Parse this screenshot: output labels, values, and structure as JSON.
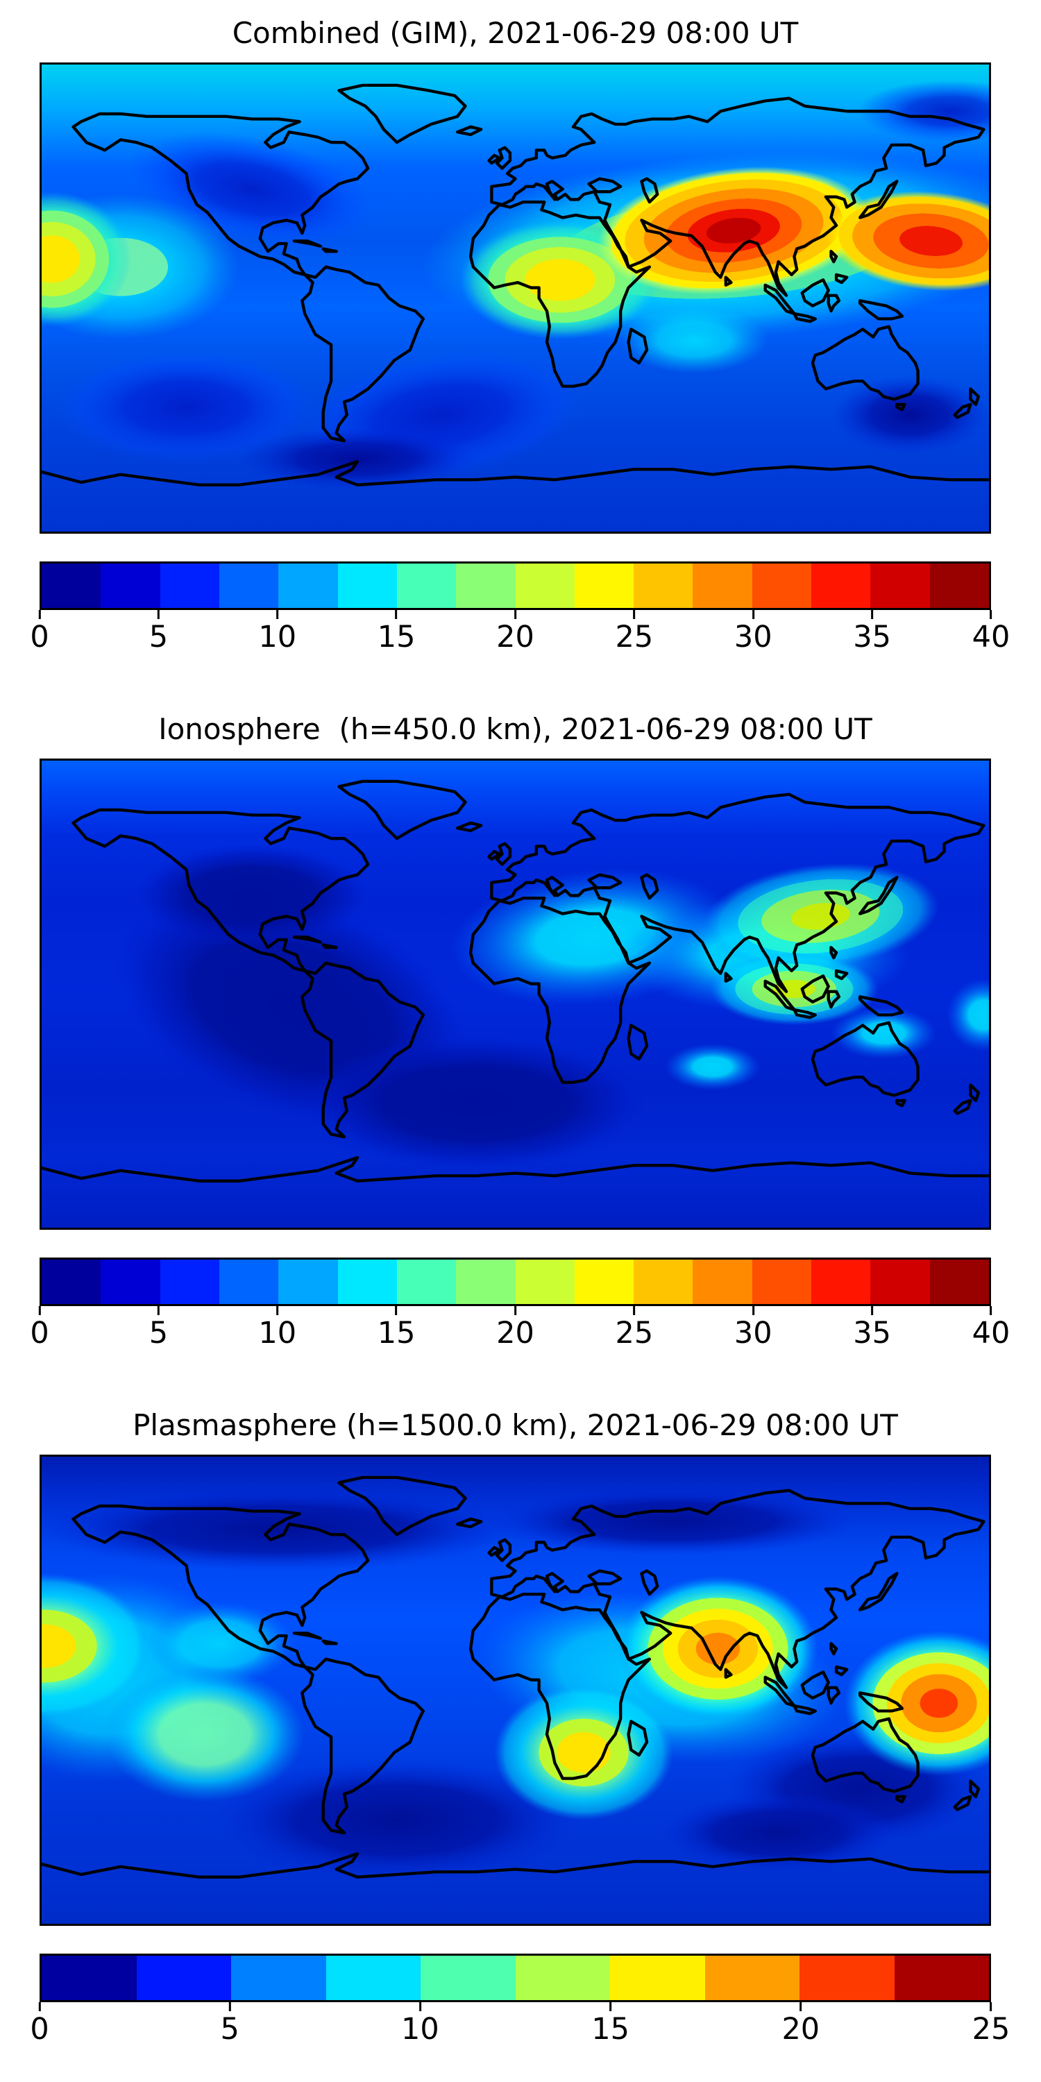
{
  "figure": {
    "background": "#ffffff",
    "text_color": "#000000",
    "colormap": "jet"
  },
  "chart_data": [
    {
      "type": "heatmap",
      "subtype": "filled-contour-world-map",
      "projection": "equirectangular",
      "title": "Combined (GIM), 2021-06-29 08:00 UT",
      "lon_range": [
        -180,
        180
      ],
      "lat_range": [
        -90,
        90
      ],
      "grid": false,
      "colorbar": {
        "min": 0,
        "max": 40,
        "segments": 16,
        "orientation": "horizontal",
        "ticks": [
          "0",
          "5",
          "10",
          "15",
          "20",
          "25",
          "30",
          "35",
          "40"
        ],
        "colors": [
          "#00009c",
          "#0000d4",
          "#0021ff",
          "#0064ff",
          "#00a6ff",
          "#00e8ff",
          "#47ffb7",
          "#8aff75",
          "#ccff33",
          "#fff700",
          "#ffc400",
          "#ff8a00",
          "#ff4f00",
          "#ff1500",
          "#d10000",
          "#990000"
        ]
      },
      "features": [
        {
          "name": "north-america-low",
          "lon": -100,
          "lat": 42,
          "value": 6,
          "rx": 48,
          "ry": 20,
          "rot": 12,
          "grad": "gDark"
        },
        {
          "name": "south-atlantic-low",
          "lon": -28,
          "lat": -45,
          "value": 5,
          "rx": 55,
          "ry": 24,
          "rot": -8,
          "grad": "gDark"
        },
        {
          "name": "south-pacific-low",
          "lon": -125,
          "lat": -42,
          "value": 5,
          "rx": 50,
          "ry": 22,
          "rot": 0,
          "grad": "gDark"
        },
        {
          "name": "southern-ocean-min-1",
          "lon": -60,
          "lat": -62,
          "value": 3,
          "rx": 45,
          "ry": 12,
          "rot": 0,
          "grad": "gNavy"
        },
        {
          "name": "southern-ocean-min-2",
          "lon": 150,
          "lat": -45,
          "value": 4,
          "rx": 30,
          "ry": 15,
          "rot": 0,
          "grad": "gNavy"
        },
        {
          "name": "arctic-east-low",
          "lon": 165,
          "lat": 72,
          "value": 8,
          "rx": 35,
          "ry": 12,
          "rot": 0,
          "grad": "gDark"
        },
        {
          "name": "east-pacific-green",
          "lon": -150,
          "lat": 12,
          "value": 18,
          "rx": 45,
          "ry": 28,
          "rot": 0,
          "grad": "gGreenCyan"
        },
        {
          "name": "south-indian-cyan",
          "lon": 68,
          "lat": -16,
          "value": 13,
          "rx": 28,
          "ry": 13,
          "rot": 0,
          "grad": "gCyan"
        },
        {
          "name": "equatorial-band",
          "lon": 82,
          "lat": 20,
          "value": 25,
          "rx": 118,
          "ry": 36,
          "rot": -4,
          "grad": "gBandGreen"
        },
        {
          "name": "africa-yellow",
          "lon": 17,
          "lat": 7,
          "value": 26,
          "rx": 38,
          "ry": 23,
          "rot": 0,
          "grad": "gYellow"
        },
        {
          "name": "dateline-yellow",
          "lon": -176,
          "lat": 15,
          "value": 24,
          "rx": 30,
          "ry": 26,
          "rot": 0,
          "grad": "gYellow"
        },
        {
          "name": "india-hotspot",
          "lon": 83,
          "lat": 26,
          "value": 38,
          "rx": 52,
          "ry": 24,
          "rot": -7,
          "grad": "gHot"
        },
        {
          "name": "west-pacific-hotspot",
          "lon": 158,
          "lat": 22,
          "value": 35,
          "rx": 40,
          "ry": 19,
          "rot": 5,
          "grad": "gHot2"
        }
      ]
    },
    {
      "type": "heatmap",
      "subtype": "filled-contour-world-map",
      "projection": "equirectangular",
      "title": "Ionosphere  (h=450.0 km), 2021-06-29 08:00 UT",
      "lon_range": [
        -180,
        180
      ],
      "lat_range": [
        -90,
        90
      ],
      "grid": false,
      "colorbar": {
        "min": 0,
        "max": 40,
        "segments": 16,
        "orientation": "horizontal",
        "ticks": [
          "0",
          "5",
          "10",
          "15",
          "20",
          "25",
          "30",
          "35",
          "40"
        ],
        "colors": [
          "#00009c",
          "#0000d4",
          "#0021ff",
          "#0064ff",
          "#00a6ff",
          "#00e8ff",
          "#47ffb7",
          "#8aff75",
          "#ccff33",
          "#fff700",
          "#ffc400",
          "#ff8a00",
          "#ff4f00",
          "#ff1500",
          "#d10000",
          "#990000"
        ]
      },
      "features": [
        {
          "name": "americas-min",
          "lon": -85,
          "lat": -5,
          "value": 4,
          "rx": 70,
          "ry": 42,
          "rot": 20,
          "grad": "gNavy2"
        },
        {
          "name": "north-america-min",
          "lon": -100,
          "lat": 38,
          "value": 5,
          "rx": 45,
          "ry": 20,
          "rot": 0,
          "grad": "gNavy2"
        },
        {
          "name": "south-atlantic-min",
          "lon": -15,
          "lat": -42,
          "value": 4,
          "rx": 65,
          "ry": 26,
          "rot": 0,
          "grad": "gNavy2"
        },
        {
          "name": "africa-mideast-cyan",
          "lon": 30,
          "lat": 22,
          "value": 14,
          "rx": 55,
          "ry": 26,
          "rot": -6,
          "grad": "gCyan2"
        },
        {
          "name": "indian-ocean-cyan",
          "lon": 95,
          "lat": 15,
          "value": 15,
          "rx": 55,
          "ry": 22,
          "rot": 0,
          "grad": "gCyan2"
        },
        {
          "name": "south-indian-cyan",
          "lon": 75,
          "lat": -28,
          "value": 10,
          "rx": 18,
          "ry": 9,
          "rot": 0,
          "grad": "gCyan2"
        },
        {
          "name": "coral-sea-cyan",
          "lon": 140,
          "lat": -15,
          "value": 10,
          "rx": 20,
          "ry": 10,
          "rot": 0,
          "grad": "gCyan2"
        },
        {
          "name": "dateline-cyan",
          "lon": 178,
          "lat": -8,
          "value": 10,
          "rx": 14,
          "ry": 14,
          "rot": 0,
          "grad": "gCyan2"
        },
        {
          "name": "east-asia-peak",
          "lon": 116,
          "lat": 30,
          "value": 24,
          "rx": 45,
          "ry": 20,
          "rot": -6,
          "grad": "gGY"
        },
        {
          "name": "southeast-asia-peak",
          "lon": 106,
          "lat": 2,
          "value": 23,
          "rx": 32,
          "ry": 14,
          "rot": 0,
          "grad": "gGY"
        }
      ]
    },
    {
      "type": "heatmap",
      "subtype": "filled-contour-world-map",
      "projection": "equirectangular",
      "title": "Plasmasphere (h=1500.0 km), 2021-06-29 08:00 UT",
      "lon_range": [
        -180,
        180
      ],
      "lat_range": [
        -90,
        90
      ],
      "grid": false,
      "colorbar": {
        "min": 0,
        "max": 25,
        "segments": 10,
        "orientation": "horizontal",
        "ticks": [
          "0",
          "5",
          "10",
          "15",
          "20",
          "25"
        ],
        "colors": [
          "#0000a0",
          "#0018ff",
          "#0080ff",
          "#00e0ff",
          "#4dffae",
          "#b0ff4a",
          "#fff000",
          "#ff9e00",
          "#ff3a00",
          "#a80000"
        ]
      },
      "features": [
        {
          "name": "arctic-min-band-1",
          "lon": -90,
          "lat": 62,
          "value": 3,
          "rx": 90,
          "ry": 16,
          "rot": 0,
          "grad": "gNavy3"
        },
        {
          "name": "arctic-min-band-2",
          "lon": 60,
          "lat": 65,
          "value": 3,
          "rx": 70,
          "ry": 13,
          "rot": 0,
          "grad": "gNavy3"
        },
        {
          "name": "south-atlantic-min",
          "lon": -45,
          "lat": -50,
          "value": 3,
          "rx": 70,
          "ry": 24,
          "rot": 0,
          "grad": "gNavy3"
        },
        {
          "name": "south-australia-min",
          "lon": 130,
          "lat": -38,
          "value": 3,
          "rx": 50,
          "ry": 22,
          "rot": 0,
          "grad": "gNavy3"
        },
        {
          "name": "southern-ocean-min",
          "lon": 100,
          "lat": -55,
          "value": 3,
          "rx": 45,
          "ry": 15,
          "rot": 0,
          "grad": "gNavy3"
        },
        {
          "name": "central-pacific-cyan",
          "lon": -155,
          "lat": 5,
          "value": 10,
          "rx": 55,
          "ry": 40,
          "rot": 0,
          "grad": "gCyan3"
        },
        {
          "name": "mexico-cyan",
          "lon": -112,
          "lat": 18,
          "value": 9,
          "rx": 28,
          "ry": 16,
          "rot": 0,
          "grad": "gCyan3"
        },
        {
          "name": "africa-asia-cyan",
          "lon": 55,
          "lat": 5,
          "value": 10,
          "rx": 70,
          "ry": 32,
          "rot": 8,
          "grad": "gCyan3"
        },
        {
          "name": "southeast-pacific-green",
          "lon": -118,
          "lat": -17,
          "value": 11,
          "rx": 38,
          "ry": 26,
          "rot": 0,
          "grad": "gGreen3"
        },
        {
          "name": "dateline-yellow",
          "lon": -179,
          "lat": 17,
          "value": 17,
          "rx": 40,
          "ry": 28,
          "rot": 0,
          "grad": "gYellow3"
        },
        {
          "name": "south-africa-yellow",
          "lon": 26,
          "lat": -24,
          "value": 17,
          "rx": 34,
          "ry": 26,
          "rot": 0,
          "grad": "gYellow3"
        },
        {
          "name": "india-peak",
          "lon": 77,
          "lat": 16,
          "value": 20,
          "rx": 38,
          "ry": 28,
          "rot": 0,
          "grad": "gOrange3"
        },
        {
          "name": "west-pacific-peak",
          "lon": 161,
          "lat": -5,
          "value": 22,
          "rx": 36,
          "ry": 28,
          "rot": 0,
          "grad": "gRed3"
        }
      ]
    }
  ]
}
